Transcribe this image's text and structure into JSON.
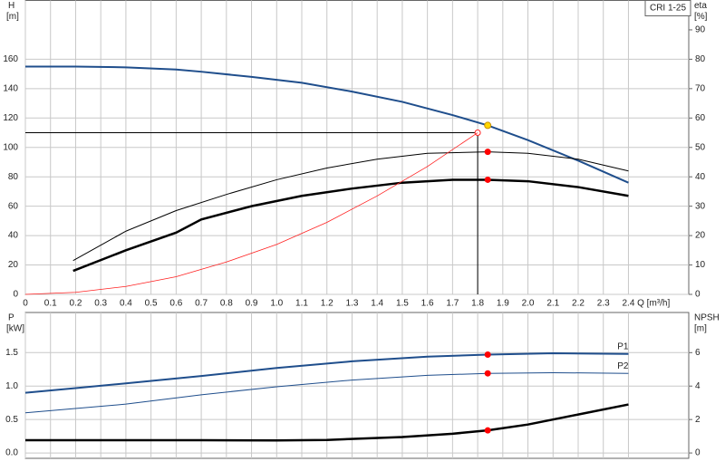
{
  "chart_data": [
    {
      "type": "line",
      "legend_label": "CRI 1-25",
      "y_label": "H",
      "y_unit": "[m]",
      "y2_label": "eta",
      "y2_unit": "[%]",
      "x_label": "Q [m³/h]",
      "xlim": [
        0,
        2.64
      ],
      "ylim": [
        0,
        200
      ],
      "y2lim": [
        0,
        100
      ],
      "grid": true,
      "xticks": [
        0,
        0.1,
        0.2,
        0.3,
        0.4,
        0.5,
        0.6,
        0.7,
        0.8,
        0.9,
        {
          "value": 1,
          "label": "1.0"
        },
        1.1,
        1.2,
        1.3,
        1.4,
        1.5,
        1.6,
        1.7,
        1.8,
        1.9,
        {
          "value": 2,
          "label": "2.0"
        },
        2.1,
        2.2,
        2.3,
        2.4
      ],
      "yticks": [
        0,
        20,
        40,
        60,
        80,
        100,
        120,
        140,
        160
      ],
      "y2ticks": [
        0,
        10,
        20,
        30,
        40,
        50,
        60,
        70,
        80,
        90
      ],
      "series": [
        {
          "color": "#1f4e8c",
          "width": 2,
          "x": [
            0,
            0.2,
            0.4,
            0.6,
            0.7,
            0.9,
            1.1,
            1.3,
            1.5,
            1.7,
            1.84,
            2.0,
            2.2,
            2.4
          ],
          "values": [
            155,
            155,
            154.5,
            153,
            151.5,
            148,
            144,
            138,
            131,
            122,
            115,
            105,
            91,
            76
          ]
        },
        {
          "color": "#000000",
          "width": 1,
          "axis": "y2",
          "x": [
            0.19,
            0.4,
            0.6,
            0.8,
            1.0,
            1.2,
            1.4,
            1.6,
            1.84,
            2.0,
            2.2,
            2.4
          ],
          "values": [
            11.5,
            21.5,
            28.5,
            34,
            39,
            43,
            46,
            48,
            48.5,
            48,
            46,
            42
          ]
        },
        {
          "color": "#000000",
          "width": 2.5,
          "axis": "y2",
          "x": [
            0.19,
            0.4,
            0.6,
            0.7,
            0.9,
            1.1,
            1.3,
            1.5,
            1.7,
            1.84,
            2.0,
            2.2,
            2.4
          ],
          "values": [
            8,
            15,
            21,
            25.5,
            30,
            33.5,
            36,
            38,
            39,
            39,
            38.5,
            36.5,
            33.5
          ]
        },
        {
          "color": "#ff2020",
          "width": 0.8,
          "x": [
            0,
            0.2,
            0.4,
            0.6,
            0.8,
            1.0,
            1.2,
            1.4,
            1.6,
            1.8
          ],
          "values": [
            0,
            1.4,
            5.4,
            12,
            22,
            34,
            49,
            67,
            87,
            110
          ]
        }
      ],
      "reference": {
        "x": 1.8,
        "y": 110
      },
      "markers": [
        {
          "x": 1.84,
          "y": 115,
          "color": "#ffd700"
        },
        {
          "x": 1.84,
          "y": 48.5,
          "axis": "y2",
          "color": "#ff0000"
        },
        {
          "x": 1.84,
          "y": 39,
          "axis": "y2",
          "color": "#ff0000"
        }
      ]
    },
    {
      "type": "line",
      "y_label": "P",
      "y_unit": "[kW]",
      "y2_label": "NPSH",
      "y2_unit": "[m]",
      "xlim": [
        0,
        2.64
      ],
      "ylim": [
        -0.08,
        2.1
      ],
      "y2lim": [
        -0.32,
        8.4
      ],
      "grid": true,
      "yticks": [
        {
          "value": 0,
          "label": "0.0"
        },
        0.5,
        {
          "value": 1,
          "label": "1.0"
        },
        1.5
      ],
      "y2ticks": [
        0,
        2,
        4,
        6
      ],
      "series": [
        {
          "name": "P1",
          "color": "#1f4e8c",
          "width": 2,
          "x": [
            0,
            0.2,
            0.4,
            0.7,
            1.0,
            1.3,
            1.6,
            1.84,
            2.1,
            2.4
          ],
          "values": [
            0.9,
            0.97,
            1.04,
            1.15,
            1.27,
            1.37,
            1.44,
            1.47,
            1.49,
            1.48
          ]
        },
        {
          "name": "P2",
          "color": "#1f4e8c",
          "width": 1,
          "x": [
            0,
            0.4,
            0.7,
            1.0,
            1.3,
            1.6,
            1.84,
            2.1,
            2.4
          ],
          "values": [
            0.6,
            0.73,
            0.87,
            0.99,
            1.09,
            1.16,
            1.19,
            1.2,
            1.19
          ]
        },
        {
          "color": "#000000",
          "width": 2.5,
          "axis": "y2",
          "x": [
            0,
            0.7,
            1.0,
            1.2,
            1.5,
            1.7,
            1.84,
            2.0,
            2.2,
            2.4
          ],
          "values": [
            0.76,
            0.76,
            0.75,
            0.78,
            0.95,
            1.15,
            1.35,
            1.7,
            2.3,
            2.9
          ]
        }
      ],
      "markers": [
        {
          "x": 1.84,
          "y": 1.47,
          "color": "#ff0000"
        },
        {
          "x": 1.84,
          "y": 1.19,
          "color": "#ff0000"
        },
        {
          "x": 1.84,
          "y": 1.35,
          "axis": "y2",
          "color": "#ff0000"
        }
      ]
    }
  ]
}
